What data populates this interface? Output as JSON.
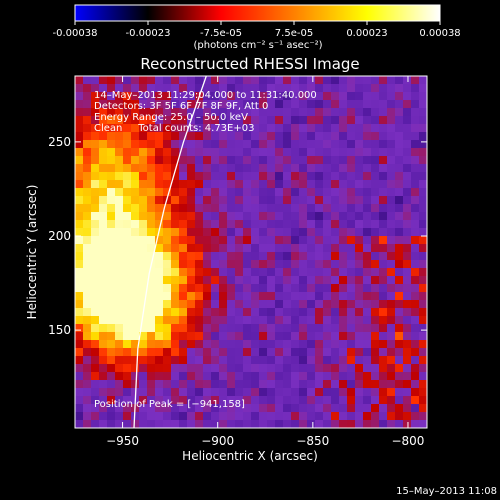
{
  "colorbar": {
    "ticks": [
      "-0.00038",
      "-0.00023",
      "-7.5e-05",
      "7.5e-05",
      "0.00023",
      "0.00038"
    ],
    "units": "(photons cm⁻² s⁻¹ asec⁻²)",
    "colors": [
      "#0000ff",
      "#000000",
      "#ff0000",
      "#ff8000",
      "#ffff00",
      "#ffffff"
    ]
  },
  "chart_data": {
    "type": "heatmap",
    "title": "Reconstructed RHESSI Image",
    "xlabel": "Heliocentric X (arcsec)",
    "ylabel": "Heliocentric Y (arcsec)",
    "xlim": [
      -975,
      -790
    ],
    "ylim": [
      98,
      285
    ],
    "x_ticks": [
      -950,
      -900,
      -850,
      -800
    ],
    "x_tick_labels": [
      "−950",
      "−900",
      "−850",
      "−800"
    ],
    "y_ticks": [
      150,
      200,
      250
    ],
    "y_tick_labels": [
      "150",
      "200",
      "250"
    ],
    "annotations": [
      "14–May–2013 11:29:04.000 to 11:31:40.000",
      "Detectors: 3F 5F 6F 7F 8F 9F, Att 0",
      "Energy Range: 25.0 – 50.0 keV",
      "Clean     Total counts: 4.73E+03"
    ],
    "peak_label": "Position of Peak = [−941,158]",
    "peak": [
      -941,
      158
    ],
    "limb": [
      [
        -944,
        98
      ],
      [
        -942,
        140
      ],
      [
        -936,
        180
      ],
      [
        -928,
        215
      ],
      [
        -918,
        250
      ],
      [
        -906,
        285
      ]
    ],
    "bright_sources": [
      {
        "x": -955,
        "y": 185,
        "sigma": 26,
        "amplitude": 0.9
      },
      {
        "x": -943,
        "y": 160,
        "sigma": 18,
        "amplitude": 0.55
      },
      {
        "x": -955,
        "y": 240,
        "sigma": 22,
        "amplitude": 0.45
      }
    ],
    "colormap": [
      "#220066",
      "#5a1da8",
      "#7a2fc0",
      "#c00000",
      "#ff3000",
      "#ff9000",
      "#ffe000",
      "#ffffc0"
    ]
  },
  "footer": {
    "timestamp": "15–May–2013 11:08"
  }
}
